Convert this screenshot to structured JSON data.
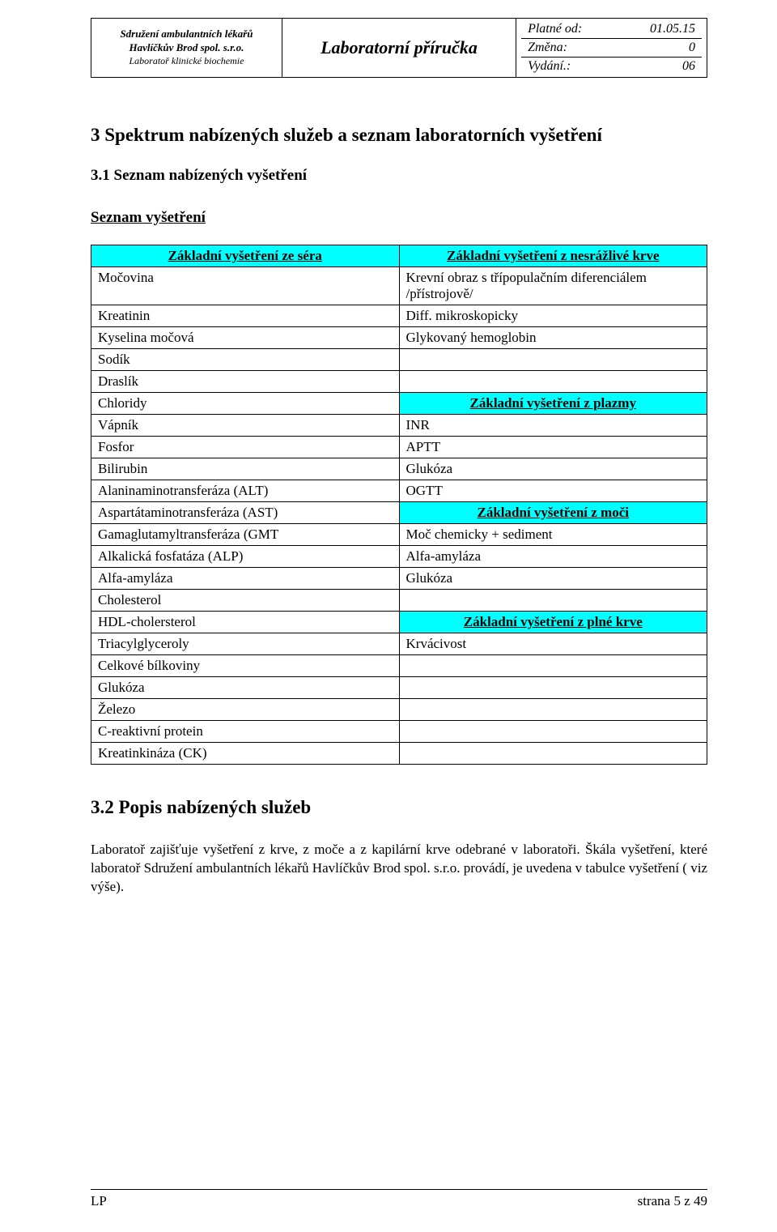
{
  "header": {
    "org_line1": "Sdružení ambulantních lékařů",
    "org_line2": "Havlíčkův Brod spol.  s.r.o.",
    "org_line3": "Laboratoř klinické biochemie",
    "title": "Laboratorní příručka",
    "meta": [
      {
        "label": "Platné od:",
        "value": "01.05.15"
      },
      {
        "label": "Změna:",
        "value": "0"
      },
      {
        "label": "Vydání.:",
        "value": "06"
      }
    ]
  },
  "section3": {
    "heading": "3   Spektrum nabízených služeb a seznam laboratorních vyšetření",
    "sub31": "3.1 Seznam nabízených vyšetření",
    "sub_label": "Seznam vyšetření"
  },
  "table": {
    "hdr_left": "Základní vyšetření ze séra",
    "hdr_right_1": "Základní vyšetření z nesrážlivé krve",
    "hdr_right_2": "Základní vyšetření z plazmy",
    "hdr_right_3": "Základní vyšetření z moči",
    "hdr_right_4": "Základní vyšetření z plné krve",
    "rows": [
      [
        "Močovina",
        "Krevní obraz s třípopulačním diferenciálem /přístrojově/"
      ],
      [
        "Kreatinin",
        "Diff. mikroskopicky"
      ],
      [
        "Kyselina močová",
        "Glykovaný hemoglobin"
      ],
      [
        "Sodík",
        ""
      ],
      [
        "Draslík",
        ""
      ],
      [
        "Chloridy",
        null
      ],
      [
        "Vápník",
        "INR"
      ],
      [
        "Fosfor",
        "APTT"
      ],
      [
        "Bilirubin",
        "Glukóza"
      ],
      [
        "Alaninaminotransferáza (ALT)",
        "OGTT"
      ],
      [
        "Aspartátaminotransferáza (AST)",
        null
      ],
      [
        "Gamaglutamyltransferáza (GMT",
        "Moč chemicky +  sediment"
      ],
      [
        "Alkalická fosfatáza (ALP)",
        "Alfa-amyláza"
      ],
      [
        "Alfa-amyláza",
        "Glukóza"
      ],
      [
        "Cholesterol",
        ""
      ],
      [
        "HDL-cholersterol",
        null
      ],
      [
        "Triacylglyceroly",
        "Krvácivost"
      ],
      [
        "Celkové bílkoviny",
        ""
      ],
      [
        "Glukóza",
        ""
      ],
      [
        "Železo",
        ""
      ],
      [
        "C-reaktivní protein",
        ""
      ],
      [
        "Kreatinkináza (CK)",
        ""
      ]
    ]
  },
  "section32": {
    "heading": "3.2  Popis nabízených služeb",
    "para": "Laboratoř zajišťuje  vyšetření  z krve,  z moče  a  z kapilární  krve  odebrané  v laboratoři.  Škála vyšetření, které  laboratoř Sdružení ambulantních lékařů Havlíčkův Brod spol.  s.r.o.  provádí, je uvedena v tabulce vyšetření ( viz výše)."
  },
  "footer": {
    "left": "LP",
    "right": "strana 5 z 49"
  }
}
